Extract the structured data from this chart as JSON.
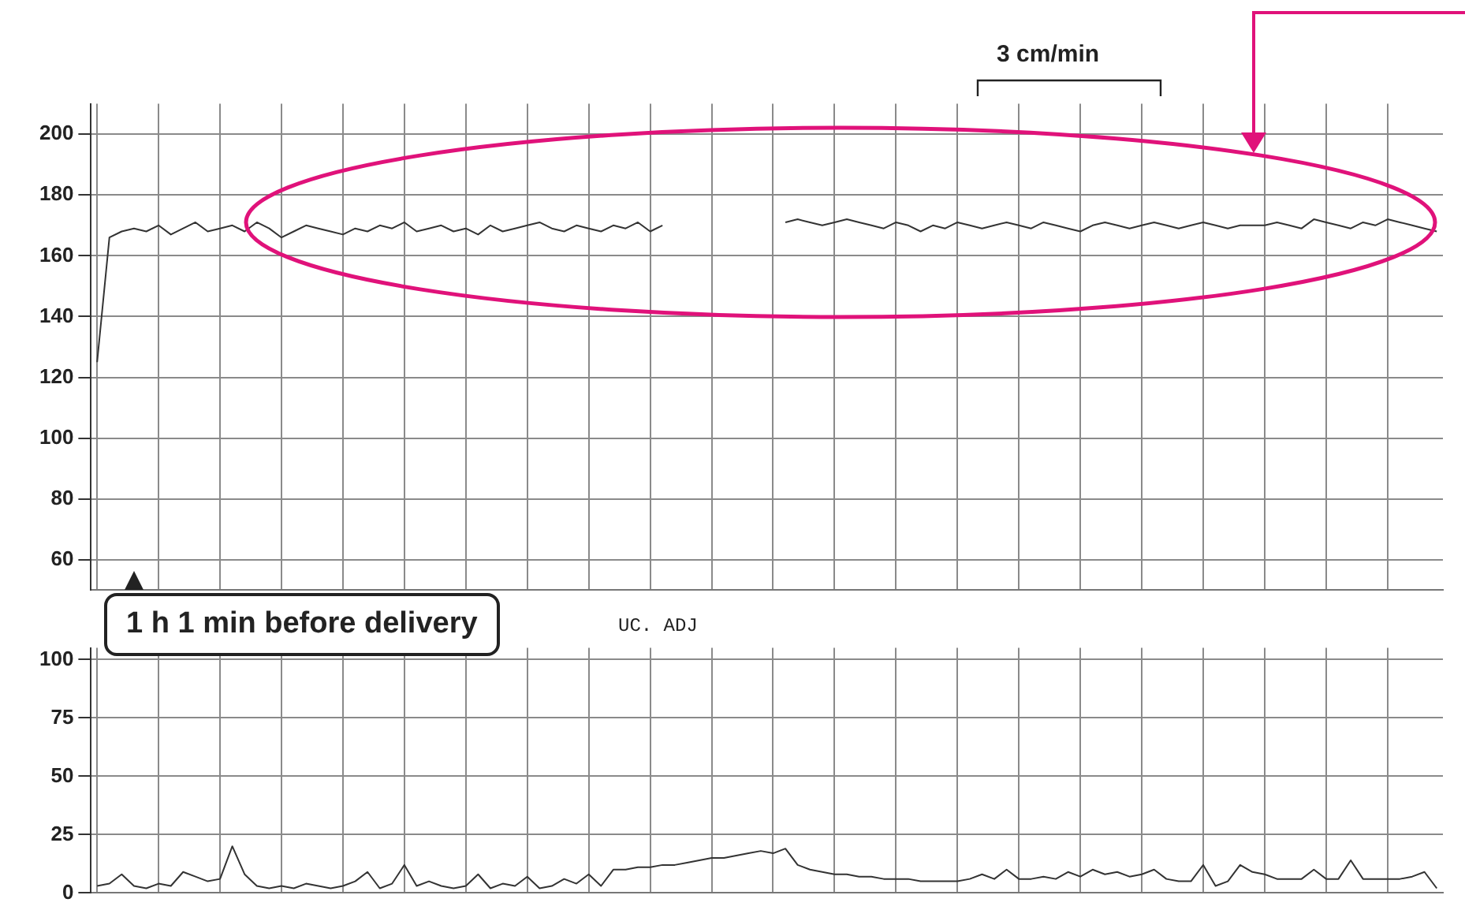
{
  "chart_data": [
    {
      "type": "line",
      "annotations": [
        "3 cm/min",
        "1 h 1 min before delivery"
      ],
      "categories": [
        null,
        null,
        null,
        null,
        null,
        null,
        null,
        null,
        null,
        null,
        null,
        null,
        null,
        null,
        null,
        null,
        null,
        null,
        null,
        null,
        null,
        null,
        null,
        null,
        null,
        null,
        null,
        null,
        null,
        null,
        null,
        null,
        null,
        null,
        null,
        null,
        null,
        null,
        null,
        null,
        null,
        null,
        null,
        null,
        null,
        null,
        null,
        null,
        null,
        null,
        null,
        null,
        null,
        null,
        null,
        null,
        null,
        null,
        null,
        null,
        null,
        null,
        null,
        null,
        null,
        null,
        null,
        null,
        null,
        null,
        null,
        null,
        null,
        null,
        null,
        null,
        null,
        null,
        null,
        null,
        null,
        null,
        null,
        null,
        null,
        null,
        null,
        null,
        null,
        null,
        null,
        null,
        null,
        null,
        null,
        null,
        null,
        null,
        null,
        null,
        null,
        null,
        null,
        null,
        null,
        null,
        null,
        null,
        null,
        null
      ],
      "series": [
        {
          "color": "#333333",
          "values": [
            125,
            166,
            168,
            169,
            168,
            170,
            167,
            169,
            171,
            168,
            169,
            170,
            168,
            171,
            169,
            166,
            168,
            170,
            169,
            168,
            167,
            169,
            168,
            170,
            169,
            171,
            168,
            169,
            170,
            168,
            169,
            167,
            170,
            168,
            169,
            170,
            171,
            169,
            168,
            170,
            169,
            168,
            170,
            169,
            171,
            168,
            170,
            null,
            null,
            null,
            null,
            null,
            null,
            null,
            null,
            null,
            171,
            172,
            171,
            170,
            171,
            172,
            171,
            170,
            169,
            171,
            170,
            168,
            170,
            169,
            171,
            170,
            169,
            170,
            171,
            170,
            169,
            171,
            170,
            169,
            168,
            170,
            171,
            170,
            169,
            170,
            171,
            170,
            169,
            170,
            171,
            170,
            169,
            170,
            170,
            170,
            171,
            170,
            169,
            172,
            171,
            170,
            169,
            171,
            170,
            172,
            171,
            170,
            169,
            168
          ]
        }
      ],
      "ylim": [
        50,
        210
      ],
      "yticks": [
        60,
        80,
        100,
        120,
        140,
        160,
        180,
        200
      ],
      "grid": true,
      "tick_labels": "y"
    },
    {
      "type": "line",
      "annotations": [
        "UC. ADJ"
      ],
      "categories": [
        null,
        null,
        null,
        null,
        null,
        null,
        null,
        null,
        null,
        null,
        null,
        null,
        null,
        null,
        null,
        null,
        null,
        null,
        null,
        null,
        null,
        null,
        null,
        null,
        null,
        null,
        null,
        null,
        null,
        null,
        null,
        null,
        null,
        null,
        null,
        null,
        null,
        null,
        null,
        null,
        null,
        null,
        null,
        null,
        null,
        null,
        null,
        null,
        null,
        null,
        null,
        null,
        null,
        null,
        null,
        null,
        null,
        null,
        null,
        null,
        null,
        null,
        null,
        null,
        null,
        null,
        null,
        null,
        null,
        null,
        null,
        null,
        null,
        null,
        null,
        null,
        null,
        null,
        null,
        null,
        null,
        null,
        null,
        null,
        null,
        null,
        null,
        null,
        null,
        null,
        null,
        null,
        null,
        null,
        null,
        null,
        null,
        null,
        null,
        null,
        null,
        null,
        null,
        null,
        null,
        null,
        null,
        null,
        null,
        null
      ],
      "series": [
        {
          "color": "#333333",
          "values": [
            3,
            4,
            8,
            3,
            2,
            4,
            3,
            9,
            7,
            5,
            6,
            20,
            8,
            3,
            2,
            3,
            2,
            4,
            3,
            2,
            3,
            5,
            9,
            2,
            4,
            12,
            3,
            5,
            3,
            2,
            3,
            8,
            2,
            4,
            3,
            7,
            2,
            3,
            6,
            4,
            8,
            3,
            10,
            10,
            11,
            11,
            12,
            12,
            13,
            14,
            15,
            15,
            16,
            17,
            18,
            17,
            19,
            12,
            10,
            9,
            8,
            8,
            7,
            7,
            6,
            6,
            6,
            5,
            5,
            5,
            5,
            6,
            8,
            6,
            10,
            6,
            6,
            7,
            6,
            9,
            7,
            10,
            8,
            9,
            7,
            8,
            10,
            6,
            5,
            5,
            12,
            3,
            5,
            12,
            9,
            8,
            6,
            6,
            6,
            10,
            6,
            6,
            14,
            6,
            6,
            6,
            6,
            7,
            9,
            2
          ]
        }
      ],
      "ylim": [
        0,
        105
      ],
      "yticks": [
        0,
        25,
        50,
        75,
        100
      ],
      "grid": true,
      "tick_labels": "y"
    }
  ]
}
